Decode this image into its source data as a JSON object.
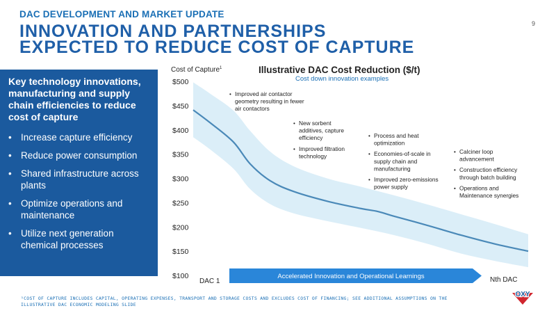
{
  "header": {
    "kicker": "DAC DEVELOPMENT AND MARKET UPDATE",
    "title_line1": "INNOVATION AND PARTNERSHIPS",
    "title_line2": "EXPECTED TO REDUCE COST OF CAPTURE",
    "page_number": "9"
  },
  "left_panel": {
    "heading": "Key technology innovations, manufacturing and supply chain efficiencies to reduce cost of capture",
    "bullets": [
      "Increase capture efficiency",
      "Reduce power consumption",
      "Shared infrastructure across plants",
      "Optimize operations and maintenance",
      "Utilize next generation chemical processes"
    ]
  },
  "chart_data": {
    "type": "area",
    "title": "Illustrative DAC Cost Reduction ($/t)",
    "subtitle": "Cost down innovation examples",
    "ylabel": "Cost of Capture",
    "ylabel_superscript": "1",
    "ylim": [
      100,
      500
    ],
    "y_ticks": [
      "$500",
      "$450",
      "$400",
      "$350",
      "$300",
      "$250",
      "$200",
      "$150",
      "$100"
    ],
    "x_start_label": "DAC 1",
    "x_end_label": "Nth DAC",
    "xlim": [
      0,
      1
    ],
    "series": [
      {
        "role": "central estimate",
        "color": "#4a89b8",
        "points": [
          [
            0.0,
            441
          ],
          [
            0.05,
            415
          ],
          [
            0.12,
            375
          ],
          [
            0.17,
            330
          ],
          [
            0.23,
            295
          ],
          [
            0.3,
            273
          ],
          [
            0.4,
            253
          ],
          [
            0.5,
            238
          ],
          [
            0.55,
            232
          ],
          [
            0.6,
            222
          ],
          [
            0.7,
            203
          ],
          [
            0.8,
            183
          ],
          [
            0.9,
            165
          ],
          [
            1.0,
            150
          ]
        ]
      },
      {
        "role": "range band",
        "color": "#dbeef8",
        "upper": [
          [
            0.0,
            498
          ],
          [
            0.05,
            475
          ],
          [
            0.12,
            440
          ],
          [
            0.17,
            398
          ],
          [
            0.23,
            355
          ],
          [
            0.3,
            325
          ],
          [
            0.4,
            300
          ],
          [
            0.5,
            283
          ],
          [
            0.6,
            265
          ],
          [
            0.7,
            246
          ],
          [
            0.8,
            226
          ],
          [
            0.9,
            206
          ],
          [
            1.0,
            185
          ]
        ],
        "lower": [
          [
            0.0,
            385
          ],
          [
            0.05,
            360
          ],
          [
            0.12,
            320
          ],
          [
            0.17,
            278
          ],
          [
            0.23,
            247
          ],
          [
            0.3,
            228
          ],
          [
            0.4,
            212
          ],
          [
            0.5,
            198
          ],
          [
            0.6,
            183
          ],
          [
            0.7,
            165
          ],
          [
            0.8,
            145
          ],
          [
            0.9,
            130
          ],
          [
            1.0,
            117
          ]
        ]
      }
    ],
    "annotations": [
      {
        "bullets": [
          "Improved air contactor geometry resulting in fewer air contactors"
        ]
      },
      {
        "bullets": [
          "New sorbent additives, capture efficiency",
          "Improved filtration technology"
        ]
      },
      {
        "bullets": [
          "Process and heat optimization",
          "Economies-of-scale in supply chain and manufacturing",
          "Improved zero-emissions power supply"
        ]
      },
      {
        "bullets": [
          "Calciner loop advancement",
          "Construction efficiency through batch building",
          "Operations and Maintenance synergies"
        ]
      }
    ],
    "arrow_label": "Accelerated Innovation and Operational Learnings",
    "colors": {
      "line": "#4a89b8",
      "band": "#dbeef8",
      "arrow": "#2a86d9"
    }
  },
  "footnote": "¹COST OF CAPTURE INCLUDES CAPITAL, OPERATING EXPENSES, TRANSPORT AND STORAGE COSTS AND EXCLUDES COST OF FINANCING; SEE ADDITIONAL ASSUMPTIONS ON THE ILLUSTRATIVE DAC ECONOMIC MODELING SLIDE",
  "logo": {
    "text": "OXY",
    "colors": {
      "text": "#ffffff",
      "fill": "#d0262f"
    }
  }
}
